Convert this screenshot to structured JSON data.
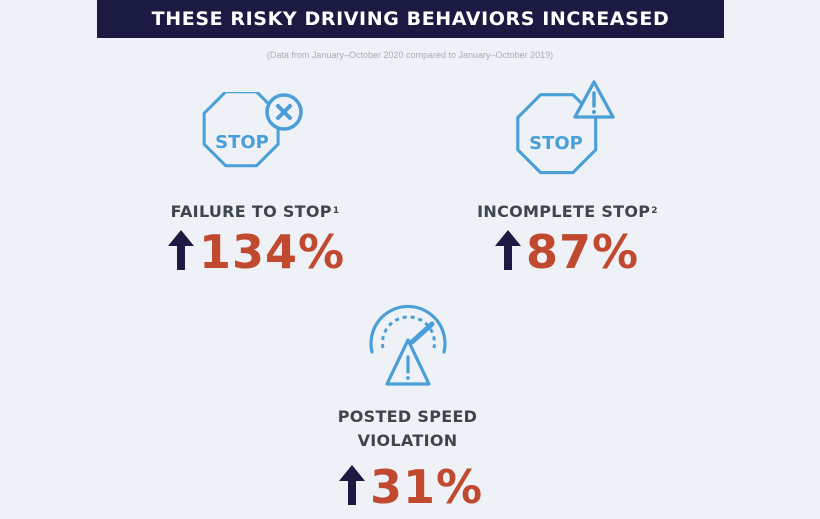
{
  "header": {
    "title": "THESE RISKY DRIVING BEHAVIORS INCREASED",
    "subtitle": "(Data from January–October 2020 compared to January–October 2019)"
  },
  "colors": {
    "header_bg": "#1b1a43",
    "background": "#eef1f5",
    "icon_blue": "#4a9fd8",
    "value_red": "#c0492f",
    "arrow_navy": "#1b1a43",
    "label_gray": "#3f454c"
  },
  "stats": [
    {
      "icon": "stop-sign-x-icon",
      "sign_text": "STOP",
      "label": "FAILURE TO STOP",
      "footnote": "1",
      "direction": "increase",
      "value": "134%"
    },
    {
      "icon": "stop-sign-warning-icon",
      "sign_text": "STOP",
      "label": "INCOMPLETE STOP",
      "footnote": "2",
      "direction": "increase",
      "value": "87%"
    },
    {
      "icon": "speedometer-warning-icon",
      "label_line1": "POSTED SPEED",
      "label_line2": "VIOLATION",
      "direction": "increase",
      "value": "31%"
    }
  ]
}
